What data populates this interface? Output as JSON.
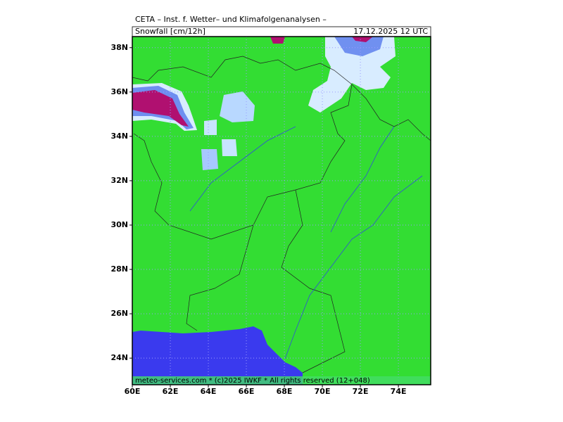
{
  "header": {
    "title": "CETA – Inst. f. Wetter– und Klimafolgenanalysen –",
    "subtitle": "Snowfall [cm/12h]",
    "valid_time": "17.12.2025 12 UTC"
  },
  "footer": "meteo-services.com * (c)2025 IWKF * All rights reserved (12+048)",
  "map": {
    "xlim": [
      60,
      75.7
    ],
    "ylim": [
      22.8,
      38.5
    ],
    "xticks": [
      {
        "value": 60,
        "label": "60E"
      },
      {
        "value": 62,
        "label": "62E"
      },
      {
        "value": 64,
        "label": "64E"
      },
      {
        "value": 66,
        "label": "66E"
      },
      {
        "value": 68,
        "label": "68E"
      },
      {
        "value": 70,
        "label": "70E"
      },
      {
        "value": 72,
        "label": "72E"
      },
      {
        "value": 74,
        "label": "74E"
      }
    ],
    "yticks": [
      {
        "value": 24,
        "label": "24N"
      },
      {
        "value": 26,
        "label": "26N"
      },
      {
        "value": 28,
        "label": "28N"
      },
      {
        "value": 30,
        "label": "30N"
      },
      {
        "value": 32,
        "label": "32N"
      },
      {
        "value": 34,
        "label": "34N"
      },
      {
        "value": 36,
        "label": "36N"
      },
      {
        "value": 38,
        "label": "38N"
      }
    ],
    "grid": true
  }
}
